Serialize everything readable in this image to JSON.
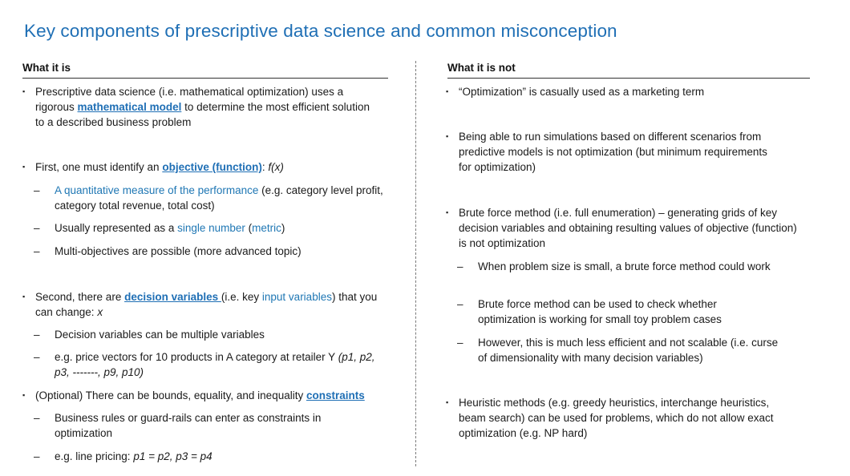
{
  "title": "Key components of prescriptive data science and common misconception",
  "left_heading": "What it is",
  "right_heading": "What it is not",
  "left": {
    "p1_a": "Prescriptive data science (i.e. mathematical optimization) uses a rigorous ",
    "p1_link": "mathematical model",
    "p1_b": " to determine the most efficient solution to a described business problem",
    "p2_a": "First, one must identify an ",
    "p2_link": "objective (function)",
    "p2_b": ": ",
    "p2_math": "f(x)",
    "s1_blue": "A quantitative measure of the performance",
    "s1_rest": " (e.g. category level profit, category total revenue, total cost)",
    "s2_a": "Usually represented as a ",
    "s2_blue": "single number",
    "s2_b": " (",
    "s2_blue2": "metric",
    "s2_c": ")",
    "s3": "Multi-objectives are possible (more advanced topic)",
    "p3_a": "Second, there are ",
    "p3_link": "decision variables ",
    "p3_b": "(i.e. key ",
    "p3_blue": "input variables",
    "p3_c": ") that you can change: ",
    "p3_math": "x",
    "s4": "Decision variables can be multiple variables",
    "s5_a": "e.g. price vectors for 10 products in A category at retailer Y ",
    "s5_math": "(p1, p2, p3, -------, p9, p10)",
    "p4_a": " (Optional) There can be bounds, equality, and inequality ",
    "p4_link": "constraints",
    "s6": "Business rules or guard-rails can enter as constraints in optimization",
    "s7_a": "e.g. line pricing: ",
    "s7_math": "p1 = p2, p3 = p4"
  },
  "right": {
    "r1": "“Optimization” is casually used as a marketing term",
    "r2": "Being able to run simulations based on different scenarios from predictive models is not optimization (but minimum requirements for optimization)",
    "r3": "Brute force method (i.e. full enumeration) – generating grids of key decision variables and obtaining resulting values of objective (function) is not optimization",
    "rs1": "When problem size is small, a brute force method could work",
    "rs2": "Brute force method can be used to check whether optimization is working for small toy problem cases",
    "rs3": "However, this is much less efficient and not scalable (i.e. curse of dimensionality with many decision variables)",
    "r4": "Heuristic methods (e.g. greedy heuristics, interchange heuristics, beam search) can be used for problems, which do not allow exact optimization (e.g. NP hard)"
  },
  "bullet": "▪",
  "dash": "–"
}
